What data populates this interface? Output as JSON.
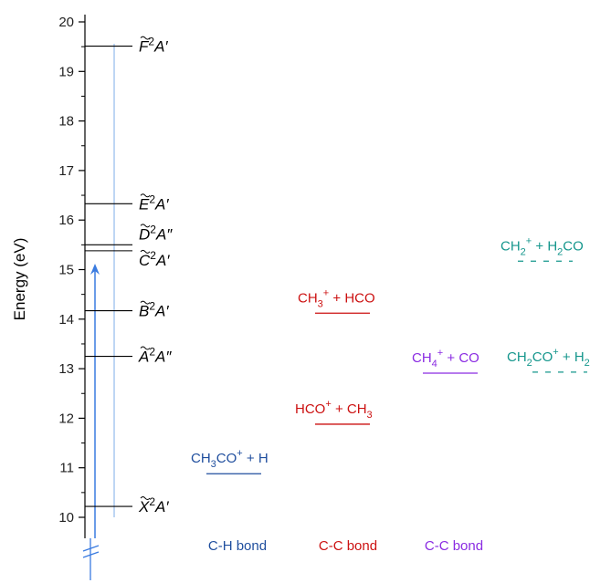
{
  "y_axis": {
    "label": "Energy (eV)",
    "ticks": [
      10,
      11,
      12,
      13,
      14,
      15,
      16,
      17,
      18,
      19,
      20
    ]
  },
  "states": [
    {
      "energy": 10.22,
      "letter": "X",
      "mult": "2",
      "sym": "A′"
    },
    {
      "energy": 13.25,
      "letter": "A",
      "mult": "2",
      "sym": "A″"
    },
    {
      "energy": 14.17,
      "letter": "B",
      "mult": "2",
      "sym": "A′"
    },
    {
      "energy": 15.38,
      "letter": "C",
      "mult": "2",
      "sym": "A′"
    },
    {
      "energy": 15.5,
      "letter": "D",
      "mult": "2",
      "sym": "A″"
    },
    {
      "energy": 16.33,
      "letter": "E",
      "mult": "2",
      "sym": "A′"
    },
    {
      "energy": 19.51,
      "letter": "F",
      "mult": "2",
      "sym": "A′"
    }
  ],
  "channels": [
    {
      "id": "ch3co-h",
      "energy": 10.88,
      "text": "CH<sub>3</sub>CO<sup>+</sup> + H",
      "color": "#1f4e9e",
      "line": "solid",
      "bond": "C-H bond"
    },
    {
      "id": "hco-ch3",
      "energy": 11.88,
      "text": "HCO<sup>+</sup> + CH<sub>3</sub>",
      "color": "#cc1111",
      "line": "solid",
      "bond": "C-C bond"
    },
    {
      "id": "ch3-hco",
      "energy": 14.12,
      "text": "CH<sub>3</sub><sup>+</sup> + HCO",
      "color": "#cc1111",
      "line": "solid",
      "bond": ""
    },
    {
      "id": "ch4-co",
      "energy": 12.91,
      "text": "CH<sub>4</sub><sup>+</sup> + CO",
      "color": "#8a2be2",
      "line": "solid",
      "bond": "C-C bond"
    },
    {
      "id": "ch2co-h2",
      "energy": 12.93,
      "text": "CH<sub>2</sub>CO<sup>+</sup> + H<sub>2</sub>",
      "color": "#14968c",
      "line": "dashed",
      "bond": ""
    },
    {
      "id": "ch2-h2co",
      "energy": 15.17,
      "text": "CH<sub>2</sub><sup>+</sup> + H<sub>2</sub>CO",
      "color": "#14968c",
      "line": "dashed",
      "bond": ""
    }
  ],
  "bond_labels": [
    "C-H bond",
    "C-C bond",
    "C-C bond"
  ],
  "colors": {
    "axis": "#000000",
    "arrow": "#3a7be0",
    "faint_line": "#a9c8f0",
    "blue": "#1f4e9e",
    "red": "#cc1111",
    "purple": "#8a2be2",
    "teal": "#14968c"
  }
}
